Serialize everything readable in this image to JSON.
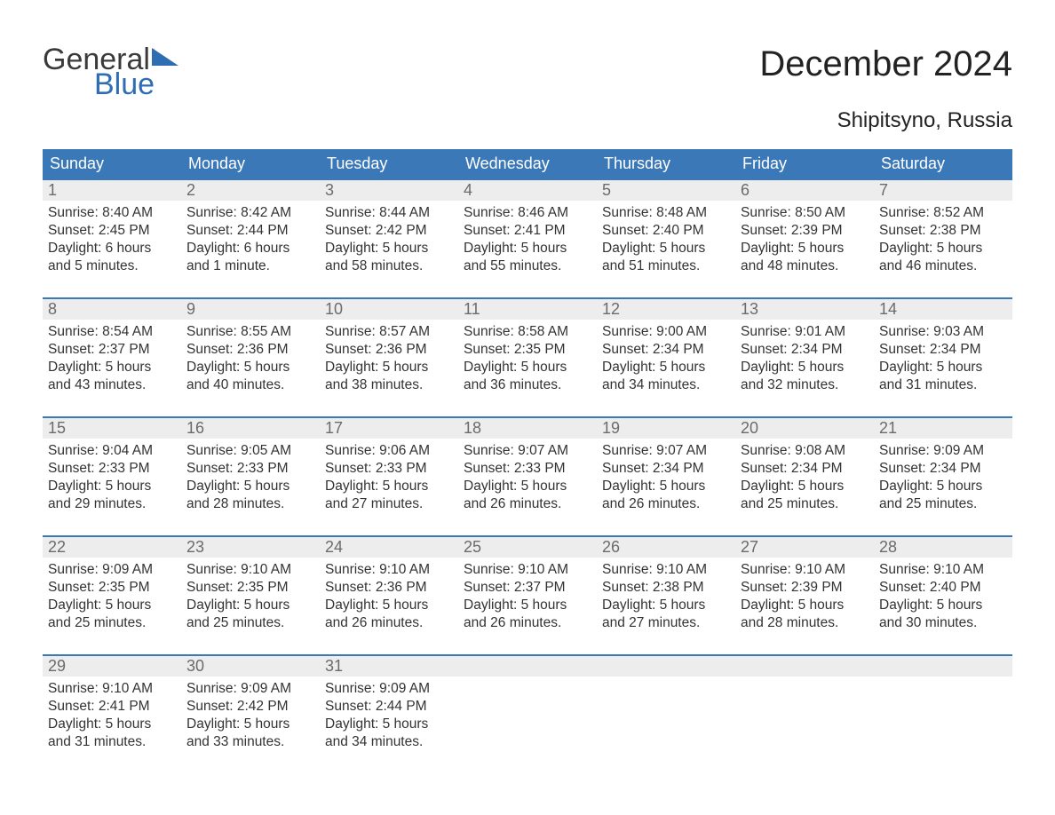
{
  "logo": {
    "text_general": "General",
    "text_blue": "Blue",
    "flag_color": "#2f6db2"
  },
  "title": "December 2024",
  "location": "Shipitsyno, Russia",
  "colors": {
    "header_bg": "#3b78b8",
    "header_text": "#ffffff",
    "daynum_bg": "#ededed",
    "daynum_text": "#6b6b6b",
    "body_text": "#333333",
    "rule": "#3b78b8",
    "page_bg": "#ffffff"
  },
  "fonts": {
    "title_size_pt": 30,
    "location_size_pt": 18,
    "dayheader_size_pt": 13,
    "daynum_size_pt": 13,
    "body_size_pt": 11.5
  },
  "day_headers": [
    "Sunday",
    "Monday",
    "Tuesday",
    "Wednesday",
    "Thursday",
    "Friday",
    "Saturday"
  ],
  "weeks": [
    [
      {
        "n": "1",
        "sunrise": "Sunrise: 8:40 AM",
        "sunset": "Sunset: 2:45 PM",
        "day1": "Daylight: 6 hours",
        "day2": "and 5 minutes."
      },
      {
        "n": "2",
        "sunrise": "Sunrise: 8:42 AM",
        "sunset": "Sunset: 2:44 PM",
        "day1": "Daylight: 6 hours",
        "day2": "and 1 minute."
      },
      {
        "n": "3",
        "sunrise": "Sunrise: 8:44 AM",
        "sunset": "Sunset: 2:42 PM",
        "day1": "Daylight: 5 hours",
        "day2": "and 58 minutes."
      },
      {
        "n": "4",
        "sunrise": "Sunrise: 8:46 AM",
        "sunset": "Sunset: 2:41 PM",
        "day1": "Daylight: 5 hours",
        "day2": "and 55 minutes."
      },
      {
        "n": "5",
        "sunrise": "Sunrise: 8:48 AM",
        "sunset": "Sunset: 2:40 PM",
        "day1": "Daylight: 5 hours",
        "day2": "and 51 minutes."
      },
      {
        "n": "6",
        "sunrise": "Sunrise: 8:50 AM",
        "sunset": "Sunset: 2:39 PM",
        "day1": "Daylight: 5 hours",
        "day2": "and 48 minutes."
      },
      {
        "n": "7",
        "sunrise": "Sunrise: 8:52 AM",
        "sunset": "Sunset: 2:38 PM",
        "day1": "Daylight: 5 hours",
        "day2": "and 46 minutes."
      }
    ],
    [
      {
        "n": "8",
        "sunrise": "Sunrise: 8:54 AM",
        "sunset": "Sunset: 2:37 PM",
        "day1": "Daylight: 5 hours",
        "day2": "and 43 minutes."
      },
      {
        "n": "9",
        "sunrise": "Sunrise: 8:55 AM",
        "sunset": "Sunset: 2:36 PM",
        "day1": "Daylight: 5 hours",
        "day2": "and 40 minutes."
      },
      {
        "n": "10",
        "sunrise": "Sunrise: 8:57 AM",
        "sunset": "Sunset: 2:36 PM",
        "day1": "Daylight: 5 hours",
        "day2": "and 38 minutes."
      },
      {
        "n": "11",
        "sunrise": "Sunrise: 8:58 AM",
        "sunset": "Sunset: 2:35 PM",
        "day1": "Daylight: 5 hours",
        "day2": "and 36 minutes."
      },
      {
        "n": "12",
        "sunrise": "Sunrise: 9:00 AM",
        "sunset": "Sunset: 2:34 PM",
        "day1": "Daylight: 5 hours",
        "day2": "and 34 minutes."
      },
      {
        "n": "13",
        "sunrise": "Sunrise: 9:01 AM",
        "sunset": "Sunset: 2:34 PM",
        "day1": "Daylight: 5 hours",
        "day2": "and 32 minutes."
      },
      {
        "n": "14",
        "sunrise": "Sunrise: 9:03 AM",
        "sunset": "Sunset: 2:34 PM",
        "day1": "Daylight: 5 hours",
        "day2": "and 31 minutes."
      }
    ],
    [
      {
        "n": "15",
        "sunrise": "Sunrise: 9:04 AM",
        "sunset": "Sunset: 2:33 PM",
        "day1": "Daylight: 5 hours",
        "day2": "and 29 minutes."
      },
      {
        "n": "16",
        "sunrise": "Sunrise: 9:05 AM",
        "sunset": "Sunset: 2:33 PM",
        "day1": "Daylight: 5 hours",
        "day2": "and 28 minutes."
      },
      {
        "n": "17",
        "sunrise": "Sunrise: 9:06 AM",
        "sunset": "Sunset: 2:33 PM",
        "day1": "Daylight: 5 hours",
        "day2": "and 27 minutes."
      },
      {
        "n": "18",
        "sunrise": "Sunrise: 9:07 AM",
        "sunset": "Sunset: 2:33 PM",
        "day1": "Daylight: 5 hours",
        "day2": "and 26 minutes."
      },
      {
        "n": "19",
        "sunrise": "Sunrise: 9:07 AM",
        "sunset": "Sunset: 2:34 PM",
        "day1": "Daylight: 5 hours",
        "day2": "and 26 minutes."
      },
      {
        "n": "20",
        "sunrise": "Sunrise: 9:08 AM",
        "sunset": "Sunset: 2:34 PM",
        "day1": "Daylight: 5 hours",
        "day2": "and 25 minutes."
      },
      {
        "n": "21",
        "sunrise": "Sunrise: 9:09 AM",
        "sunset": "Sunset: 2:34 PM",
        "day1": "Daylight: 5 hours",
        "day2": "and 25 minutes."
      }
    ],
    [
      {
        "n": "22",
        "sunrise": "Sunrise: 9:09 AM",
        "sunset": "Sunset: 2:35 PM",
        "day1": "Daylight: 5 hours",
        "day2": "and 25 minutes."
      },
      {
        "n": "23",
        "sunrise": "Sunrise: 9:10 AM",
        "sunset": "Sunset: 2:35 PM",
        "day1": "Daylight: 5 hours",
        "day2": "and 25 minutes."
      },
      {
        "n": "24",
        "sunrise": "Sunrise: 9:10 AM",
        "sunset": "Sunset: 2:36 PM",
        "day1": "Daylight: 5 hours",
        "day2": "and 26 minutes."
      },
      {
        "n": "25",
        "sunrise": "Sunrise: 9:10 AM",
        "sunset": "Sunset: 2:37 PM",
        "day1": "Daylight: 5 hours",
        "day2": "and 26 minutes."
      },
      {
        "n": "26",
        "sunrise": "Sunrise: 9:10 AM",
        "sunset": "Sunset: 2:38 PM",
        "day1": "Daylight: 5 hours",
        "day2": "and 27 minutes."
      },
      {
        "n": "27",
        "sunrise": "Sunrise: 9:10 AM",
        "sunset": "Sunset: 2:39 PM",
        "day1": "Daylight: 5 hours",
        "day2": "and 28 minutes."
      },
      {
        "n": "28",
        "sunrise": "Sunrise: 9:10 AM",
        "sunset": "Sunset: 2:40 PM",
        "day1": "Daylight: 5 hours",
        "day2": "and 30 minutes."
      }
    ],
    [
      {
        "n": "29",
        "sunrise": "Sunrise: 9:10 AM",
        "sunset": "Sunset: 2:41 PM",
        "day1": "Daylight: 5 hours",
        "day2": "and 31 minutes."
      },
      {
        "n": "30",
        "sunrise": "Sunrise: 9:09 AM",
        "sunset": "Sunset: 2:42 PM",
        "day1": "Daylight: 5 hours",
        "day2": "and 33 minutes."
      },
      {
        "n": "31",
        "sunrise": "Sunrise: 9:09 AM",
        "sunset": "Sunset: 2:44 PM",
        "day1": "Daylight: 5 hours",
        "day2": "and 34 minutes."
      },
      {
        "empty": true
      },
      {
        "empty": true
      },
      {
        "empty": true
      },
      {
        "empty": true
      }
    ]
  ]
}
